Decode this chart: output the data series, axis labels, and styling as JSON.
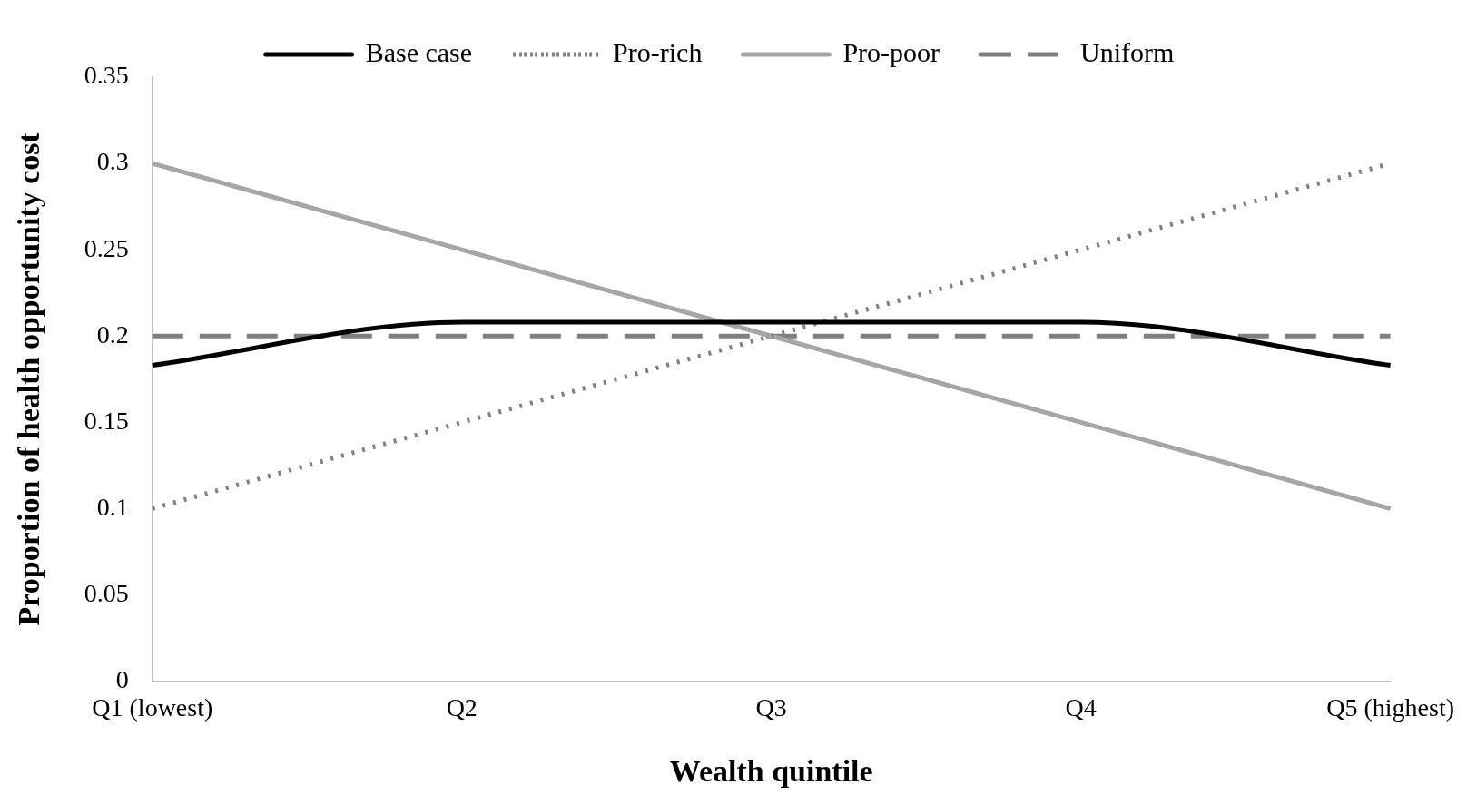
{
  "chart_data": {
    "type": "line",
    "xlabel": "Wealth quintile",
    "ylabel": "Proportion of health opportunity cost",
    "categories": [
      "Q1 (lowest)",
      "Q2",
      "Q3",
      "Q4",
      "Q5 (highest)"
    ],
    "series": [
      {
        "name": "Base case",
        "color": "#000000",
        "line_style": "solid",
        "values": [
          0.183,
          0.208,
          0.208,
          0.208,
          0.183
        ]
      },
      {
        "name": "Pro-rich",
        "color": "#808080",
        "line_style": "dotted",
        "values": [
          0.1,
          0.15,
          0.2,
          0.25,
          0.3
        ]
      },
      {
        "name": "Pro-poor",
        "color": "#a6a6a6",
        "line_style": "solid",
        "values": [
          0.3,
          0.25,
          0.2,
          0.15,
          0.1
        ]
      },
      {
        "name": "Uniform",
        "color": "#7f7f7f",
        "line_style": "dashed",
        "values": [
          0.2,
          0.2,
          0.2,
          0.2,
          0.2
        ]
      }
    ],
    "ylim": [
      0,
      0.35
    ],
    "yticks": [
      0,
      0.05,
      0.1,
      0.15,
      0.2,
      0.25,
      0.3,
      0.35
    ],
    "grid": false,
    "legend": "top",
    "marker": "none"
  }
}
